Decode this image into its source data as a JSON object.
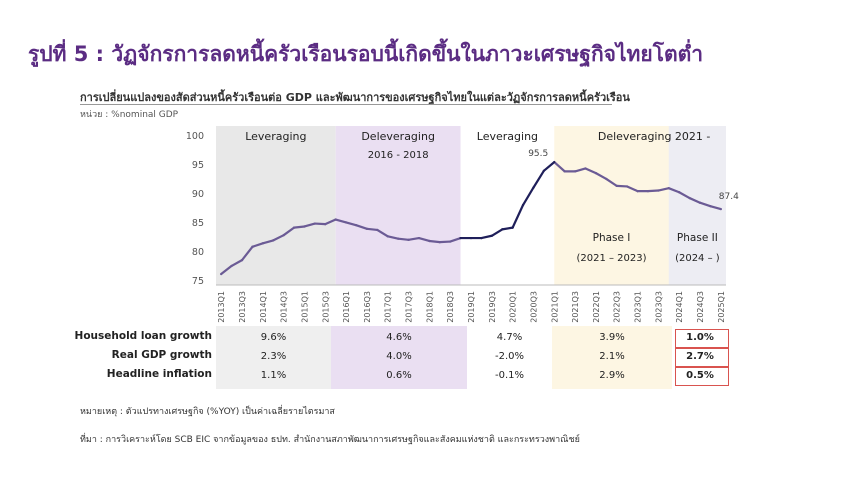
{
  "page_title": "รูปที่ 5 : วัฏจักรการลดหนี้ครัวเรือนรอบนี้เกิดขึ้นในภาวะเศรษฐกิจไทยโตต่ำ",
  "chart_subtitle": "การเปลี่ยนแปลงของสัดส่วนหนี้ครัวเรือนต่อ GDP และพัฒนาการของเศรษฐกิจไทยในแต่ละวัฏจักรการลดหนี้ครัวเรือน",
  "unit_label": "หน่วย : %nominal GDP",
  "chart_data": {
    "type": "line",
    "ylim": [
      75,
      100
    ],
    "yticks": [
      "100",
      "95",
      "90",
      "85",
      "80",
      "75"
    ],
    "x": [
      "2013Q1",
      "2013Q2",
      "2013Q3",
      "2013Q4",
      "2014Q1",
      "2014Q2",
      "2014Q3",
      "2014Q4",
      "2015Q1",
      "2015Q2",
      "2015Q3",
      "2015Q4",
      "2016Q1",
      "2016Q2",
      "2016Q3",
      "2016Q4",
      "2017Q1",
      "2017Q2",
      "2017Q3",
      "2017Q4",
      "2018Q1",
      "2018Q2",
      "2018Q3",
      "2018Q4",
      "2019Q1",
      "2019Q2",
      "2019Q3",
      "2019Q4",
      "2020Q1",
      "2020Q2",
      "2020Q3",
      "2020Q4",
      "2021Q1",
      "2021Q2",
      "2021Q3",
      "2021Q4",
      "2022Q1",
      "2022Q2",
      "2022Q3",
      "2022Q4",
      "2023Q1",
      "2023Q2",
      "2023Q3",
      "2023Q4",
      "2024Q1",
      "2024Q2",
      "2024Q3",
      "2024Q4",
      "2025Q1"
    ],
    "xtick_labels": [
      "2013Q1",
      "2013Q3",
      "2014Q1",
      "2014Q3",
      "2015Q1",
      "2015Q3",
      "2016Q1",
      "2016Q3",
      "2017Q1",
      "2017Q3",
      "2018Q1",
      "2018Q3",
      "2019Q1",
      "2019Q3",
      "2020Q1",
      "2020Q3",
      "2021Q1",
      "2021Q3",
      "2022Q1",
      "2022Q3",
      "2023Q1",
      "2023Q3",
      "2024Q1",
      "2024Q3",
      "2025Q1"
    ],
    "values": [
      76.2,
      77.6,
      78.6,
      80.9,
      81.5,
      82.0,
      82.9,
      84.2,
      84.4,
      84.9,
      84.8,
      85.6,
      85.1,
      84.6,
      84.0,
      83.8,
      82.7,
      82.3,
      82.1,
      82.4,
      81.9,
      81.7,
      81.8,
      82.4,
      82.4,
      82.4,
      82.8,
      83.9,
      84.2,
      88.1,
      91.1,
      94.0,
      95.5,
      93.9,
      93.9,
      94.4,
      93.6,
      92.6,
      91.4,
      91.3,
      90.5,
      90.5,
      90.6,
      91.0,
      90.3,
      89.3,
      88.5,
      87.9,
      87.4
    ],
    "annotations": [
      {
        "label": "95.5",
        "x": "2021Q1"
      },
      {
        "label": "87.4",
        "x": "2025Q1"
      }
    ],
    "phases": [
      {
        "label": "Leveraging",
        "sublabel": "",
        "from": "2013Q1",
        "to": "2015Q4",
        "color": "#e8e8e8"
      },
      {
        "label": "Deleveraging",
        "sublabel": "2016 - 2018",
        "from": "2015Q4",
        "to": "2018Q4",
        "color": "#eadff2"
      },
      {
        "label": "Leveraging",
        "sublabel": "",
        "from": "2018Q4",
        "to": "2021Q1",
        "color": "#ffffff"
      },
      {
        "label": "Deleveraging 2021 -",
        "sublabel": "",
        "from": "2021Q1",
        "to": "2025Q1",
        "color": "#fdf6e3"
      }
    ],
    "subphases": [
      {
        "label": "Phase I",
        "sublabel": "(2021 – 2023)",
        "from": "2021Q1",
        "to": "2023Q4",
        "color": "#fdf6e3"
      },
      {
        "label": "Phase II",
        "sublabel": "(2024 – )",
        "from": "2023Q4",
        "to": "2025Q1",
        "color": "#ededf3"
      }
    ],
    "line_colors": {
      "main": "#6b5b95",
      "highlight": "#1f1f5a"
    }
  },
  "table": {
    "rows": [
      {
        "label": "Household loan growth",
        "values": [
          "9.6%",
          "4.6%",
          "4.7%",
          "3.9%",
          "1.0%"
        ]
      },
      {
        "label": "Real GDP growth",
        "values": [
          "2.3%",
          "4.0%",
          "-2.0%",
          "2.1%",
          "2.7%"
        ]
      },
      {
        "label": "Headline inflation",
        "values": [
          "1.1%",
          "0.6%",
          "-0.1%",
          "2.9%",
          "0.5%"
        ]
      }
    ]
  },
  "notes": {
    "remark": "หมายเหตุ : ตัวแปรทางเศรษฐกิจ (%YOY) เป็นค่าเฉลี่ยรายไตรมาส",
    "source": "ที่มา : การวิเคราะห์โดย SCB EIC จากข้อมูลของ ธปท. สำนักงานสภาพัฒนาการเศรษฐกิจและสังคมแห่งชาติ และกระทรวงพาณิชย์"
  }
}
